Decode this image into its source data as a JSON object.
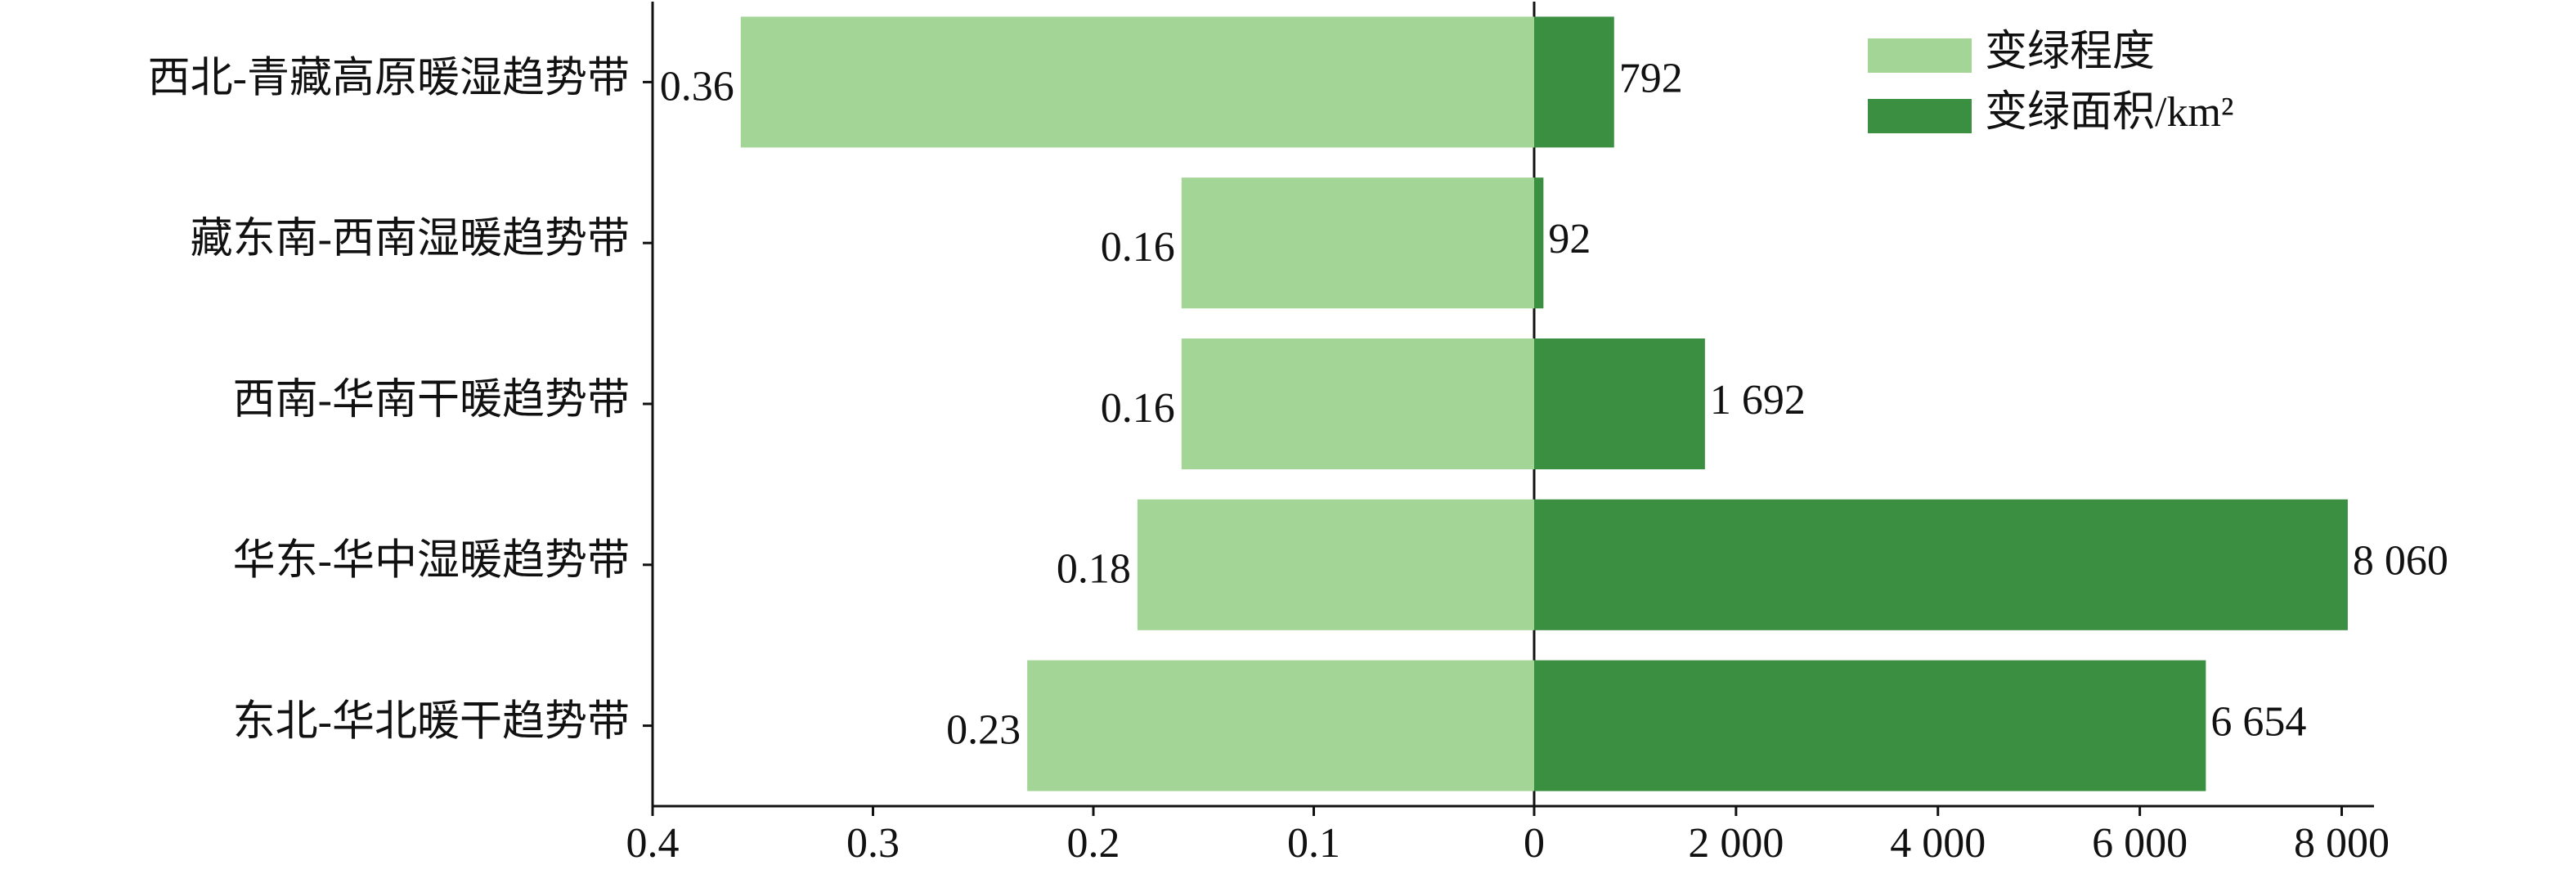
{
  "chart_data": {
    "type": "bar",
    "categories": [
      "西北-青藏高原暖湿趋势带",
      "藏东南-西南湿暖趋势带",
      "西南-华南干暖趋势带",
      "华东-华中湿暖趋势带",
      "东北-华北暖干趋势带"
    ],
    "series": [
      {
        "name": "变绿程度",
        "color": "#a3d596",
        "values": [
          0.36,
          0.16,
          0.16,
          0.18,
          0.23
        ]
      },
      {
        "name": "变绿面积/km²",
        "color": "#3a8f40",
        "axis": "x2",
        "values": [
          792,
          92,
          1692,
          8060,
          6654
        ],
        "value_labels": [
          "792",
          "92",
          "1 692",
          "8 060",
          "6 654"
        ]
      }
    ],
    "xlim": [
      0.4,
      0
    ],
    "xticks": [
      0.4,
      0.3,
      0.2,
      0.1,
      0
    ],
    "x2lim": [
      0,
      8320
    ],
    "x2ticks": [
      {
        "value": 2000,
        "label": "2 000"
      },
      {
        "value": 4000,
        "label": "4 000"
      },
      {
        "value": 6000,
        "label": "6 000"
      },
      {
        "value": 8000,
        "label": "8 000"
      }
    ],
    "legend": "upper right"
  }
}
